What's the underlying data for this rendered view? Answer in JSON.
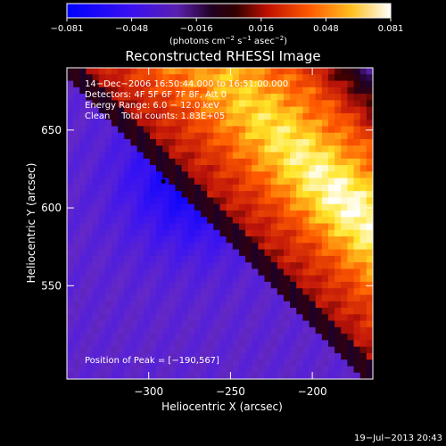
{
  "chart_data": {
    "type": "heatmap",
    "title": "Reconstructed RHESSI Image",
    "xlabel": "Heliocentric X (arcsec)",
    "ylabel": "Heliocentric Y (arcsec)",
    "xlim": [
      -350,
      -163
    ],
    "ylim": [
      490,
      690
    ],
    "xticks": [
      -300,
      -250,
      -200
    ],
    "xtick_labels": [
      "−300",
      "−250",
      "−200"
    ],
    "yticks": [
      550,
      600,
      650
    ],
    "ytick_labels": [
      "550",
      "600",
      "650"
    ],
    "colorbar": {
      "range": [
        -0.081,
        0.081
      ],
      "tick_labels": [
        "−0.081",
        "−0.048",
        "−0.016",
        "0.016",
        "0.048",
        "0.081"
      ],
      "label_main": "(photons cm",
      "label_sup1": "−2",
      "label_mid1": " s",
      "label_sup2": "−1",
      "label_mid2": " asec",
      "label_sup3": "−2",
      "label_end": ")"
    },
    "annotations": [
      "14−Dec−2006 16:50:44.000 to 16:51:00.000",
      "Detectors: 4F 5F 6F 7F 8F, Att 0",
      "Energy Range: 6.0 − 12.0 keV",
      "Clean    Total counts: 1.83E+05"
    ],
    "peak_label": "Position of Peak = [−190,567]",
    "marker": {
      "x": -291,
      "y": 617
    },
    "palette": [
      "#0000ff",
      "#6a22d0",
      "#2a0033",
      "#b01010",
      "#ff5a00",
      "#ffff33",
      "#ffffff"
    ],
    "grid": false
  },
  "footer": {
    "timestamp": "19−Jul−2013 20:43"
  }
}
